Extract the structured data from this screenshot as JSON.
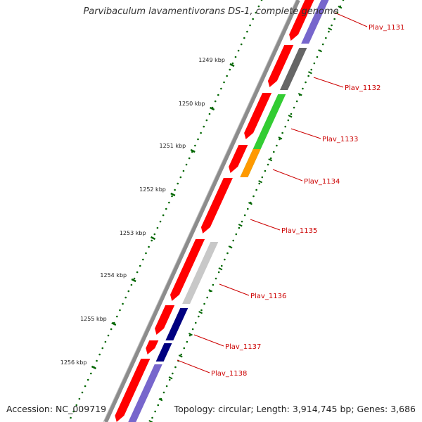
{
  "title": "Parvibaculum lavamentivorans DS-1, complete genome",
  "footer": {
    "accession": "Accession: NC_009719",
    "summary": "Topology: circular; Length: 3,914,745 bp; Genes: 3,686"
  },
  "ticks": [
    "1249 kbp",
    "1250 kbp",
    "1251 kbp",
    "1252 kbp",
    "1253 kbp",
    "1254 kbp",
    "1255 kbp",
    "1256 kbp"
  ],
  "genes": [
    "Plav_1131",
    "Plav_1132",
    "Plav_1133",
    "Plav_1134",
    "Plav_1135",
    "Plav_1136",
    "Plav_1137",
    "Plav_1138"
  ],
  "colors": {
    "backbone": "#8c8c8c",
    "cds_forward": "#ff0000",
    "cds_reverse_dark": "#666666",
    "cds_reverse_green": "#33cc33",
    "cds_reverse_orange": "#ff9900",
    "cds_reverse_light": "#c8c8c8",
    "cds_reverse_navy": "#000080",
    "cds_reverse_purple": "#7766cc",
    "ticks": "#006600",
    "labels": "#cc0000"
  }
}
